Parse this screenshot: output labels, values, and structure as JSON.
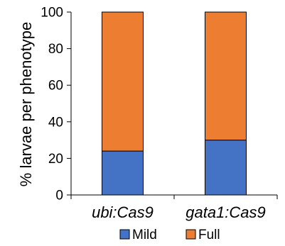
{
  "chart_data": {
    "type": "bar",
    "stacked": true,
    "categories": [
      "ubi:Cas9",
      "gata1:Cas9"
    ],
    "series": [
      {
        "name": "Mild",
        "values": [
          24,
          30
        ],
        "color": "#4472C4"
      },
      {
        "name": "Full",
        "values": [
          76,
          70
        ],
        "color": "#ED7D31"
      }
    ],
    "ylabel": "% larvae per phenotype",
    "xlabel": "",
    "ylim": [
      0,
      100
    ],
    "yticks": [
      0,
      20,
      40,
      60,
      80,
      100
    ],
    "grid": false,
    "legend_position": "bottom"
  }
}
